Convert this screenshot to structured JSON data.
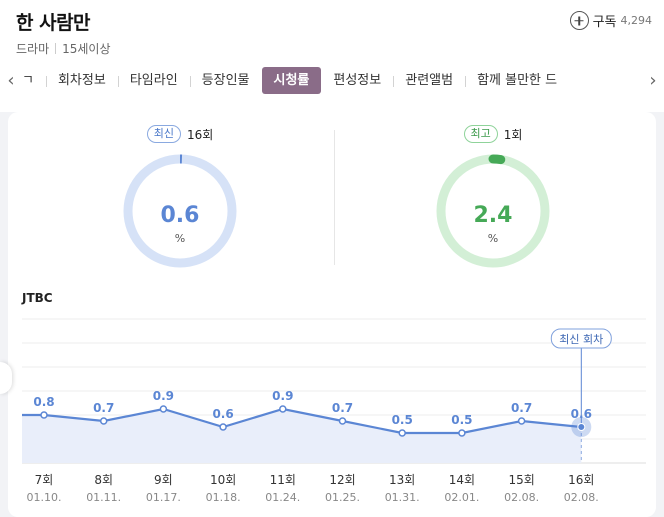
{
  "header": {
    "title": "한 사람만",
    "genre": "드라마",
    "rating": "15세이상",
    "subscribe_label": "구독",
    "subscribe_count": "4,294"
  },
  "tabs": [
    {
      "label": "ㄱ",
      "active": false
    },
    {
      "label": "회차정보",
      "active": false
    },
    {
      "label": "타임라인",
      "active": false
    },
    {
      "label": "등장인물",
      "active": false
    },
    {
      "label": "시청률",
      "active": true
    },
    {
      "label": "편성정보",
      "active": false
    },
    {
      "label": "관련앨범",
      "active": false
    },
    {
      "label": "함께 볼만한 드",
      "active": false
    }
  ],
  "stats": {
    "latest": {
      "badge": "최신",
      "episode": "16회",
      "value": "0.6",
      "unit": "%",
      "fraction": 0.006
    },
    "best": {
      "badge": "최고",
      "episode": "1회",
      "value": "2.4",
      "unit": "%",
      "fraction": 0.024
    }
  },
  "colors": {
    "accent_purple": "#8a6c88",
    "blue": "#5b86d4",
    "green": "#46a957",
    "blue_light": "#d6e2f7",
    "green_light": "#d3efd6"
  },
  "chart_data": {
    "type": "line",
    "channel": "JTBC",
    "episodes": [
      "7회",
      "8회",
      "9회",
      "10회",
      "11회",
      "12회",
      "13회",
      "14회",
      "15회",
      "16회"
    ],
    "dates": [
      "01.10.",
      "01.11.",
      "01.17.",
      "01.18.",
      "01.24.",
      "01.25.",
      "01.31.",
      "02.01.",
      "02.08.",
      "02.08."
    ],
    "values": [
      0.8,
      0.7,
      0.9,
      0.6,
      0.9,
      0.7,
      0.5,
      0.5,
      0.7,
      0.6
    ],
    "ylim": [
      0,
      2.4
    ],
    "grid": true,
    "highlight_label": "최신 회차"
  }
}
